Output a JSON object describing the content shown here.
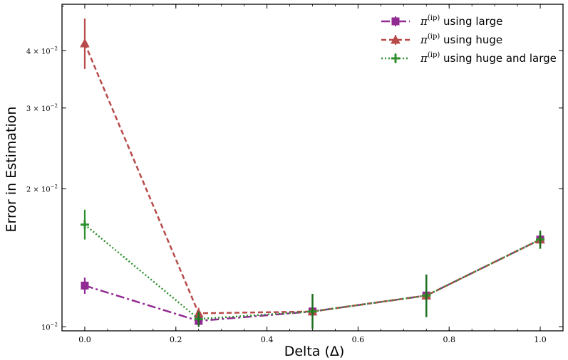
{
  "chart_data": {
    "type": "line",
    "xlabel": "Delta (Δ)",
    "ylabel": "Error in Estimation",
    "xlim": [
      -0.05,
      1.05
    ],
    "ylim": [
      0.0098,
      0.0505
    ],
    "yscale": "log",
    "grid": false,
    "legend_position": "top-right",
    "x": [
      0.0,
      0.25,
      0.5,
      0.75,
      1.0
    ],
    "xticks": [
      {
        "value": 0.0,
        "label": "0.0"
      },
      {
        "value": 0.2,
        "label": "0.2"
      },
      {
        "value": 0.4,
        "label": "0.4"
      },
      {
        "value": 0.6,
        "label": "0.6"
      },
      {
        "value": 0.8,
        "label": "0.8"
      },
      {
        "value": 1.0,
        "label": "1.0"
      }
    ],
    "yticks": [
      {
        "value": 0.01,
        "mant": "10",
        "exp": "−2"
      },
      {
        "value": 0.02,
        "mant": "2 × 10",
        "exp": "−2"
      },
      {
        "value": 0.03,
        "mant": "3 × 10",
        "exp": "−2"
      },
      {
        "value": 0.04,
        "mant": "4 × 10",
        "exp": "−2"
      }
    ],
    "series": [
      {
        "legend_prefix": "π",
        "legend_sup": "(ip)",
        "legend_suffix": " using large",
        "color": "#912a92",
        "dash": "12 4 3 4",
        "marker": "square",
        "values": [
          0.0123,
          0.0103,
          0.0108,
          0.0117,
          0.0155
        ],
        "err_low": [
          0.0118,
          0.01,
          0.0106,
          0.0114,
          0.015
        ],
        "err_high": [
          0.0128,
          0.0106,
          0.011,
          0.012,
          0.016
        ]
      },
      {
        "legend_prefix": "π",
        "legend_sup": "(ip)",
        "legend_suffix": " using huge",
        "color": "#b84a4a",
        "dash": "7 4",
        "marker": "triangle",
        "values": [
          0.0415,
          0.0107,
          0.0108,
          0.0117,
          0.0155
        ],
        "err_low": [
          0.0365,
          0.0104,
          0.0106,
          0.0114,
          0.015
        ],
        "err_high": [
          0.047,
          0.011,
          0.011,
          0.012,
          0.016
        ]
      },
      {
        "legend_prefix": "π",
        "legend_sup": "(ip)",
        "legend_suffix": " using huge and large",
        "color": "#2e8f2e",
        "dash": "2 3",
        "marker": "plus",
        "values": [
          0.0167,
          0.0104,
          0.0108,
          0.0117,
          0.0155
        ],
        "err_low": [
          0.0155,
          0.01,
          0.0099,
          0.0105,
          0.0148
        ],
        "err_high": [
          0.018,
          0.0108,
          0.0118,
          0.013,
          0.0162
        ]
      }
    ],
    "overlay_errorbars": {
      "color": "#1f6e1f",
      "points": [
        {
          "x": 0.25,
          "low": 0.01,
          "high": 0.0108
        },
        {
          "x": 0.5,
          "low": 0.0099,
          "high": 0.0118
        },
        {
          "x": 0.75,
          "low": 0.0105,
          "high": 0.013
        },
        {
          "x": 1.0,
          "low": 0.0148,
          "high": 0.0162
        }
      ]
    }
  }
}
